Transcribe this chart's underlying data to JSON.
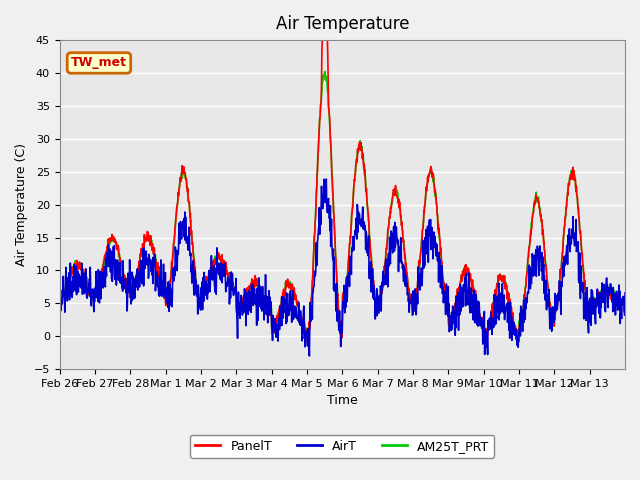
{
  "title": "Air Temperature",
  "ylabel": "Air Temperature (C)",
  "xlabel": "Time",
  "ylim": [
    -5,
    45
  ],
  "yticks": [
    -5,
    0,
    5,
    10,
    15,
    20,
    25,
    30,
    35,
    40,
    45
  ],
  "xtick_labels": [
    "Feb 26",
    "Feb 27",
    "Feb 28",
    "Mar 1",
    "Mar 2",
    "Mar 3",
    "Mar 4",
    "Mar 5",
    "Mar 6",
    "Mar 7",
    "Mar 8",
    "Mar 9",
    "Mar 10",
    "Mar 11",
    "Mar 12",
    "Mar 13"
  ],
  "annotation_text": "TW_met",
  "annotation_box_facecolor": "#ffffcc",
  "annotation_box_edgecolor": "#cc6600",
  "annotation_text_color": "#cc0000",
  "line_colors": {
    "PanelT": "#ff0000",
    "AirT": "#0000cc",
    "AM25T_PRT": "#00cc00"
  },
  "line_widths": {
    "PanelT": 1.2,
    "AirT": 1.2,
    "AM25T_PRT": 1.2
  },
  "plot_bg_color": "#e8e8e8",
  "grid_color": "#ffffff",
  "daily_highs": [
    11,
    15,
    15,
    25,
    12,
    8,
    8,
    40,
    29,
    22,
    25,
    10,
    9,
    21,
    25,
    7
  ],
  "daily_lows": [
    6,
    7,
    7,
    5,
    7,
    4,
    1,
    0,
    5,
    5,
    5,
    2,
    0,
    2,
    4,
    5
  ]
}
